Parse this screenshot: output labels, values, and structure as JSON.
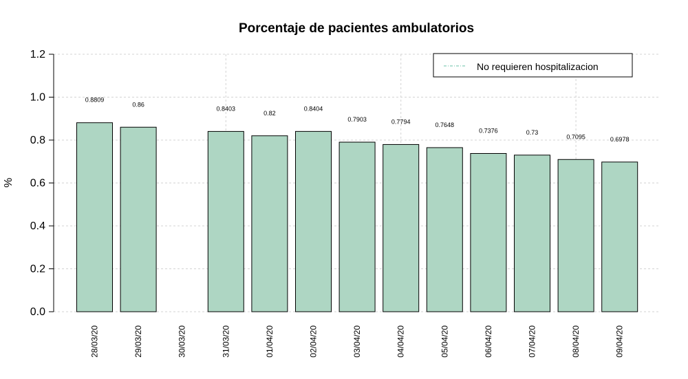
{
  "chart_data": {
    "type": "bar",
    "title": "Porcentaje de pacientes ambulatorios",
    "xlabel": "",
    "ylabel": "%",
    "ylim": [
      0,
      1.2
    ],
    "yticks": [
      "0.0",
      "0.2",
      "0.4",
      "0.6",
      "0.8",
      "1.0",
      "1.2"
    ],
    "grid": true,
    "legend_position": "top-right",
    "bar_color": "#aed6c3",
    "legend_line_color": "#66c2a5",
    "categories": [
      "28/03/20",
      "29/03/20",
      "30/03/20",
      "31/03/20",
      "01/04/20",
      "02/04/20",
      "03/04/20",
      "04/04/20",
      "05/04/20",
      "06/04/20",
      "07/04/20",
      "08/04/20",
      "09/04/20"
    ],
    "series": [
      {
        "name": "No requieren hospitalizacion",
        "values": [
          0.8809,
          0.86,
          null,
          0.8403,
          0.82,
          0.8404,
          0.7903,
          0.7794,
          0.7648,
          0.7376,
          0.73,
          0.7095,
          0.6978
        ],
        "labels": [
          "0.8809",
          "0.86",
          "",
          "0.8403",
          "0.82",
          "0.8404",
          "0.7903",
          "0.7794",
          "0.7648",
          "0.7376",
          "0.73",
          "0.7095",
          "0.6978"
        ]
      }
    ]
  }
}
